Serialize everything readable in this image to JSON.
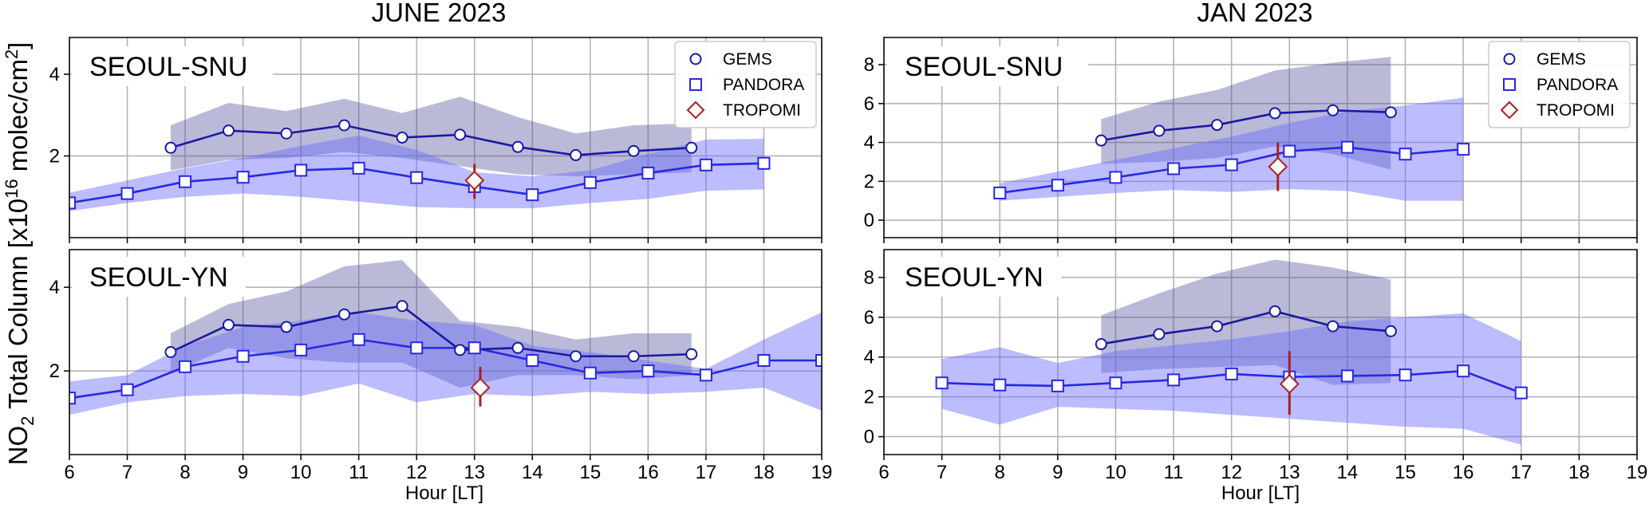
{
  "figure": {
    "column_titles": [
      "JUNE 2023",
      "JAN 2023"
    ],
    "ylabel": {
      "base": "NO",
      "sub": "2",
      "mid": " Total Column [x10",
      "sup1": "16",
      "unit": " molec/cm",
      "sup2": "2",
      "close": "]"
    },
    "xlabel": "Hour [LT]"
  },
  "colors": {
    "gems_line": "#1a1aa0",
    "gems_band": "#4a4a98",
    "pandora_line": "#2828e0",
    "pandora_band": "#6b6bff",
    "tropomi": "#a52222"
  },
  "legend": [
    {
      "name": "GEMS",
      "marker": "circle"
    },
    {
      "name": "PANDORA",
      "marker": "square"
    },
    {
      "name": "TROPOMI",
      "marker": "diamond"
    }
  ],
  "chart_data": [
    {
      "type": "line",
      "column": "JUNE 2023",
      "station": "SEOUL-SNU",
      "xlim": [
        6,
        19
      ],
      "ylim": [
        0,
        4.9
      ],
      "xticks": [
        6,
        7,
        8,
        9,
        10,
        11,
        12,
        13,
        14,
        15,
        16,
        17,
        18,
        19
      ],
      "yticks": [
        2,
        4
      ],
      "grid": true,
      "legend_position": "top-right",
      "series": [
        {
          "name": "GEMS",
          "x": [
            7.75,
            8.75,
            9.75,
            10.75,
            11.75,
            12.75,
            13.75,
            14.75,
            15.75,
            16.75
          ],
          "y": [
            2.2,
            2.62,
            2.55,
            2.75,
            2.45,
            2.52,
            2.22,
            2.02,
            2.12,
            2.2
          ],
          "upper": [
            2.75,
            3.3,
            3.1,
            3.4,
            3.05,
            3.45,
            2.95,
            2.55,
            2.75,
            2.8
          ],
          "lower": [
            1.65,
            1.9,
            1.95,
            2.1,
            1.95,
            1.75,
            1.55,
            1.5,
            1.55,
            1.6
          ]
        },
        {
          "name": "PANDORA",
          "x": [
            6,
            7,
            8,
            9,
            10,
            11,
            12,
            13,
            14,
            15,
            16,
            17,
            18
          ],
          "y": [
            0.85,
            1.08,
            1.37,
            1.48,
            1.65,
            1.7,
            1.47,
            1.25,
            1.05,
            1.35,
            1.58,
            1.78,
            1.82
          ],
          "upper": [
            1.1,
            1.4,
            1.7,
            1.95,
            2.25,
            2.5,
            2.15,
            1.6,
            1.5,
            1.65,
            2.05,
            2.4,
            2.42
          ],
          "lower": [
            0.65,
            0.85,
            1.0,
            1.08,
            1.0,
            0.88,
            0.75,
            0.72,
            0.72,
            0.85,
            0.95,
            1.15,
            1.18
          ]
        },
        {
          "name": "TROPOMI",
          "x": [
            13.0
          ],
          "y": [
            1.4
          ],
          "err_low": [
            0.95
          ],
          "err_high": [
            1.8
          ]
        }
      ]
    },
    {
      "type": "line",
      "column": "JUNE 2023",
      "station": "SEOUL-YN",
      "xlim": [
        6,
        19
      ],
      "ylim": [
        0,
        4.9
      ],
      "xticks": [
        6,
        7,
        8,
        9,
        10,
        11,
        12,
        13,
        14,
        15,
        16,
        17,
        18,
        19
      ],
      "yticks": [
        2,
        4
      ],
      "grid": true,
      "series": [
        {
          "name": "GEMS",
          "x": [
            7.75,
            8.75,
            9.75,
            10.75,
            11.75,
            12.75,
            13.75,
            14.75,
            15.75,
            16.75
          ],
          "y": [
            2.45,
            3.1,
            3.05,
            3.35,
            3.55,
            2.5,
            2.55,
            2.35,
            2.35,
            2.4
          ],
          "upper": [
            2.9,
            3.6,
            3.9,
            4.5,
            4.65,
            3.2,
            3.05,
            2.75,
            2.9,
            2.9
          ],
          "lower": [
            1.95,
            2.55,
            2.3,
            2.2,
            2.2,
            1.6,
            1.9,
            1.9,
            1.8,
            1.9
          ]
        },
        {
          "name": "PANDORA",
          "x": [
            6,
            7,
            8,
            9,
            10,
            11,
            12,
            13,
            14,
            15,
            16,
            17,
            18,
            19
          ],
          "y": [
            1.35,
            1.55,
            2.1,
            2.35,
            2.5,
            2.75,
            2.55,
            2.55,
            2.25,
            1.95,
            2.0,
            1.9,
            2.25,
            2.25
          ],
          "upper": [
            1.75,
            1.9,
            2.6,
            3.05,
            3.2,
            3.4,
            3.2,
            3.1,
            2.6,
            2.45,
            2.25,
            2.05,
            2.75,
            3.4
          ],
          "lower": [
            0.95,
            1.25,
            1.4,
            1.45,
            1.4,
            1.7,
            1.25,
            1.45,
            1.4,
            1.5,
            1.45,
            1.5,
            1.6,
            1.05
          ]
        },
        {
          "name": "TROPOMI",
          "x": [
            13.1
          ],
          "y": [
            1.6
          ],
          "err_low": [
            1.15
          ],
          "err_high": [
            2.1
          ]
        }
      ]
    },
    {
      "type": "line",
      "column": "JAN 2023",
      "station": "SEOUL-SNU",
      "xlim": [
        6,
        19
      ],
      "ylim": [
        -0.9,
        9.4
      ],
      "xticks": [
        6,
        7,
        8,
        9,
        10,
        11,
        12,
        13,
        14,
        15,
        16,
        17,
        18,
        19
      ],
      "yticks": [
        0,
        2,
        4,
        6,
        8
      ],
      "grid": true,
      "legend_position": "top-right",
      "series": [
        {
          "name": "GEMS",
          "x": [
            9.75,
            10.75,
            11.75,
            12.75,
            13.75,
            14.75
          ],
          "y": [
            4.1,
            4.6,
            4.9,
            5.5,
            5.65,
            5.55
          ],
          "upper": [
            5.2,
            6.1,
            6.7,
            7.7,
            8.1,
            8.4
          ],
          "lower": [
            2.9,
            3.0,
            3.2,
            3.8,
            3.4,
            2.6
          ]
        },
        {
          "name": "PANDORA",
          "x": [
            8,
            9,
            10,
            11,
            12,
            13,
            14,
            15,
            16
          ],
          "y": [
            1.4,
            1.8,
            2.2,
            2.65,
            2.85,
            3.55,
            3.75,
            3.4,
            3.65
          ],
          "upper": [
            1.9,
            2.5,
            3.1,
            3.7,
            4.3,
            5.0,
            5.6,
            5.9,
            6.3
          ],
          "lower": [
            1.0,
            1.2,
            1.4,
            1.55,
            1.45,
            1.6,
            1.5,
            1.0,
            1.0
          ]
        },
        {
          "name": "TROPOMI",
          "x": [
            12.8
          ],
          "y": [
            2.75
          ],
          "err_low": [
            1.5
          ],
          "err_high": [
            4.0
          ]
        }
      ]
    },
    {
      "type": "line",
      "column": "JAN 2023",
      "station": "SEOUL-YN",
      "xlim": [
        6,
        19
      ],
      "ylim": [
        -0.9,
        9.4
      ],
      "xticks": [
        6,
        7,
        8,
        9,
        10,
        11,
        12,
        13,
        14,
        15,
        16,
        17,
        18,
        19
      ],
      "xtick_labels_shown": [
        6,
        7,
        8,
        9,
        10,
        11,
        12,
        13,
        14,
        15,
        16,
        17,
        18,
        19
      ],
      "yticks": [
        0,
        2,
        4,
        6,
        8
      ],
      "grid": true,
      "series": [
        {
          "name": "GEMS",
          "x": [
            9.75,
            10.75,
            11.75,
            12.75,
            13.75,
            14.75
          ],
          "y": [
            4.65,
            5.15,
            5.55,
            6.3,
            5.55,
            5.3
          ],
          "upper": [
            6.1,
            7.2,
            8.2,
            8.9,
            8.5,
            7.9
          ],
          "lower": [
            3.2,
            3.4,
            3.5,
            3.6,
            2.6,
            2.7
          ]
        },
        {
          "name": "PANDORA",
          "x": [
            7,
            8,
            9,
            10,
            11,
            12,
            13,
            14,
            15,
            16,
            17
          ],
          "y": [
            2.7,
            2.6,
            2.55,
            2.7,
            2.85,
            3.15,
            3.0,
            3.05,
            3.1,
            3.3,
            2.2
          ],
          "upper": [
            3.9,
            4.5,
            3.7,
            4.3,
            4.6,
            4.9,
            5.3,
            5.8,
            6.0,
            6.2,
            4.8
          ],
          "lower": [
            1.4,
            0.6,
            1.5,
            1.4,
            1.3,
            1.1,
            0.9,
            0.7,
            0.5,
            0.4,
            -0.4
          ]
        },
        {
          "name": "TROPOMI",
          "x": [
            13.0
          ],
          "y": [
            2.65
          ],
          "err_low": [
            1.1
          ],
          "err_high": [
            4.3
          ]
        }
      ]
    }
  ]
}
